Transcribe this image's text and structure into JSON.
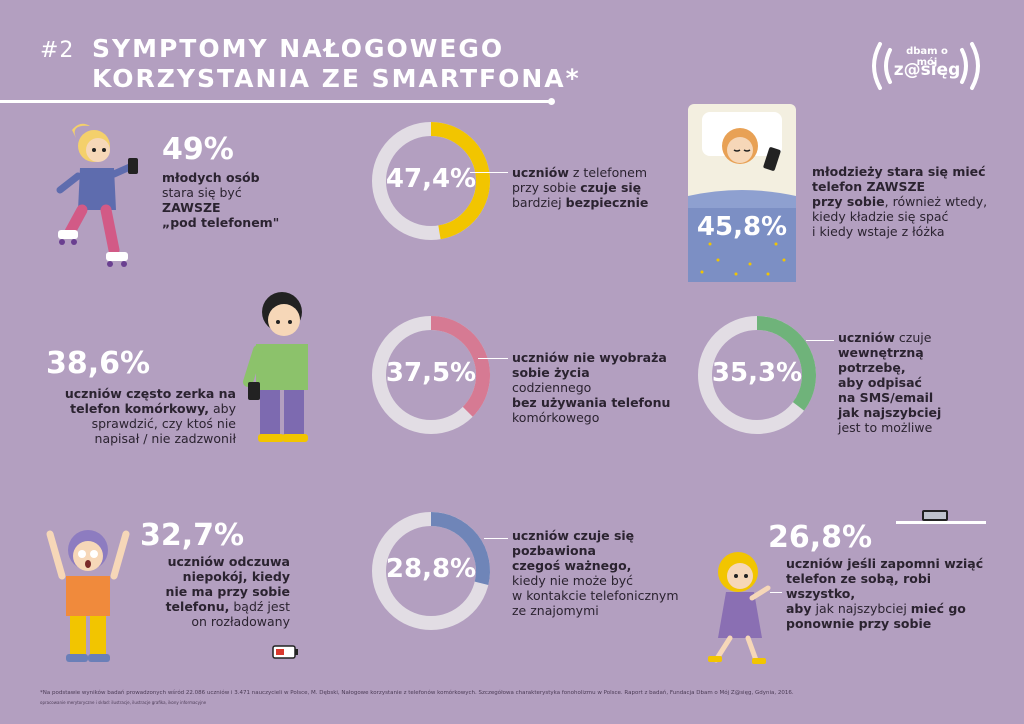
{
  "header": {
    "number": "#2",
    "title_line1": "SYMPTOMY NAŁOGOWEGO",
    "title_line2": "KORZYSTANIA ZE SMARTFONA*"
  },
  "logo": {
    "line1": "dbam o mój",
    "line2": "z@sięg"
  },
  "stats": {
    "s49": {
      "pct": "49%",
      "l1": "młodych osób",
      "l2": "stara się być",
      "l3": "ZAWSZE",
      "l4": "„pod telefonem\""
    },
    "s474": {
      "pct": "47,4%",
      "value": 47.4,
      "color": "#f2c500",
      "l1a": "uczniów",
      "l1b": " z telefonem",
      "l2": "przy sobie ",
      "l2b": "czuje się",
      "l3": "bardziej ",
      "l3b": "bezpiecznie"
    },
    "s458": {
      "pct": "45,8%",
      "l1": "młodzieży stara się mieć",
      "l2": "telefon ZAWSZE",
      "l3a": "przy sobie",
      "l3b": ", również wtedy,",
      "l4": "kiedy kładzie się spać",
      "l5": "i kiedy wstaje z łóżka"
    },
    "s386": {
      "pct": "38,6%",
      "l1a": "uczniów",
      "l1b": " często zerka na",
      "l2a": "telefon komórkowy,",
      "l2b": " aby",
      "l3": "sprawdzić, czy ktoś nie",
      "l4": "napisał / nie zadzwonił"
    },
    "s375": {
      "pct": "37,5%",
      "value": 37.5,
      "color": "#d67a93",
      "l1a": "uczniów",
      "l1b": " nie wyobraża",
      "l2": "sobie życia",
      "l2b": " codziennego",
      "l3": "bez używania telefonu",
      "l4": "komórkowego"
    },
    "s353": {
      "pct": "35,3%",
      "value": 35.3,
      "color": "#6fb37a",
      "l1a": "uczniów",
      "l1b": " czuje",
      "l2": "wewnętrzną potrzebę,",
      "l3": "aby odpisać",
      "l4": "na SMS/email",
      "l5": "jak najszybciej",
      "l6": "jest to możliwe"
    },
    "s327": {
      "pct": "32,7%",
      "l1a": "uczniów",
      "l1b": " odczuwa",
      "l2": "niepokój, kiedy",
      "l3": "nie ma przy sobie",
      "l4a": "telefonu,",
      "l4b": " bądź jest",
      "l5": "on rozładowany"
    },
    "s288": {
      "pct": "28,8%",
      "value": 28.8,
      "color": "#6f85b8",
      "l1a": "uczniów",
      "l1b": " czuje się",
      "l2": "pozbawiona",
      "l3": "czegoś ważnego,",
      "l4": "kiedy nie może być",
      "l5": "w kontakcie telefonicznym",
      "l6": "ze znajomymi"
    },
    "s268": {
      "pct": "26,8%",
      "l1a": "uczniów",
      "l1b": " jeśli zapomni wziąć",
      "l2": "telefon ze sobą, robi wszystko,",
      "l3a": "aby",
      "l3b": " jak najszybciej ",
      "l3c": "mieć go",
      "l4": "ponownie przy sobie"
    }
  },
  "footer": {
    "line1": "*Na podstawie wyników badań prowadzonych wśród 22.086 uczniów i 3.471 nauczycieli w Polsce, M. Dębski, Nałogowe korzystanie z telefonów komórkowych. Szczegółowa charakterystyka fonoholizmu w Polsce. Raport z badań, Fundacja Dbam o Mój Z@sięg, Gdynia, 2016.",
    "line2": "opracowanie merytoryczne i skład: ilustracje, ilustracje grafika, ikony informacyjne"
  },
  "colors": {
    "bg": "#b39fc0",
    "ring_track": "#e2dde4",
    "accent_yellow": "#f2c500",
    "accent_pink": "#d67a93",
    "accent_green": "#6fb37a",
    "accent_blue": "#6f85b8"
  }
}
